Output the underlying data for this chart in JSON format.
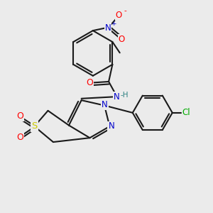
{
  "background_color": "#ebebeb",
  "bond_color": "#1a1a1a",
  "atom_colors": {
    "O": "#ff0000",
    "N": "#0000cc",
    "S": "#cccc00",
    "Cl": "#00aa00",
    "H": "#2a8080",
    "C": "#1a1a1a"
  },
  "figsize": [
    3.0,
    3.0
  ],
  "dpi": 100
}
